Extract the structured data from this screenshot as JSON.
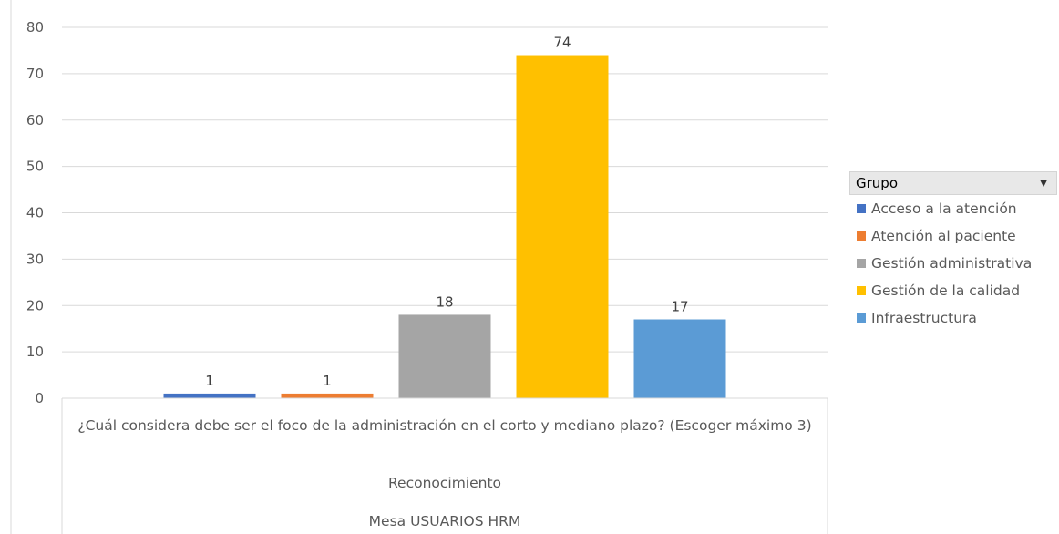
{
  "chart_data": {
    "type": "bar",
    "title": "",
    "xlabel": "",
    "ylabel": "",
    "ylim": [
      0,
      80
    ],
    "ytick_step": 10,
    "grid": true,
    "legend_placement": "right",
    "legend_title": "Grupo",
    "category_levels": [
      "¿Cuál considera debe ser el foco de la administración en el corto y mediano plazo? (Escoger máximo 3)",
      "Reconocimiento",
      "Mesa USUARIOS HRM"
    ],
    "series": [
      {
        "name": "Acceso a la atención",
        "values": [
          1
        ],
        "color": "#4472c4"
      },
      {
        "name": "Atención al paciente",
        "values": [
          1
        ],
        "color": "#ed7d31"
      },
      {
        "name": "Gestión administrativa",
        "values": [
          18
        ],
        "color": "#a5a5a5"
      },
      {
        "name": "Gestión de la calidad",
        "values": [
          74
        ],
        "color": "#ffc000"
      },
      {
        "name": "Infraestructura",
        "values": [
          17
        ],
        "color": "#5b9bd5"
      }
    ]
  }
}
